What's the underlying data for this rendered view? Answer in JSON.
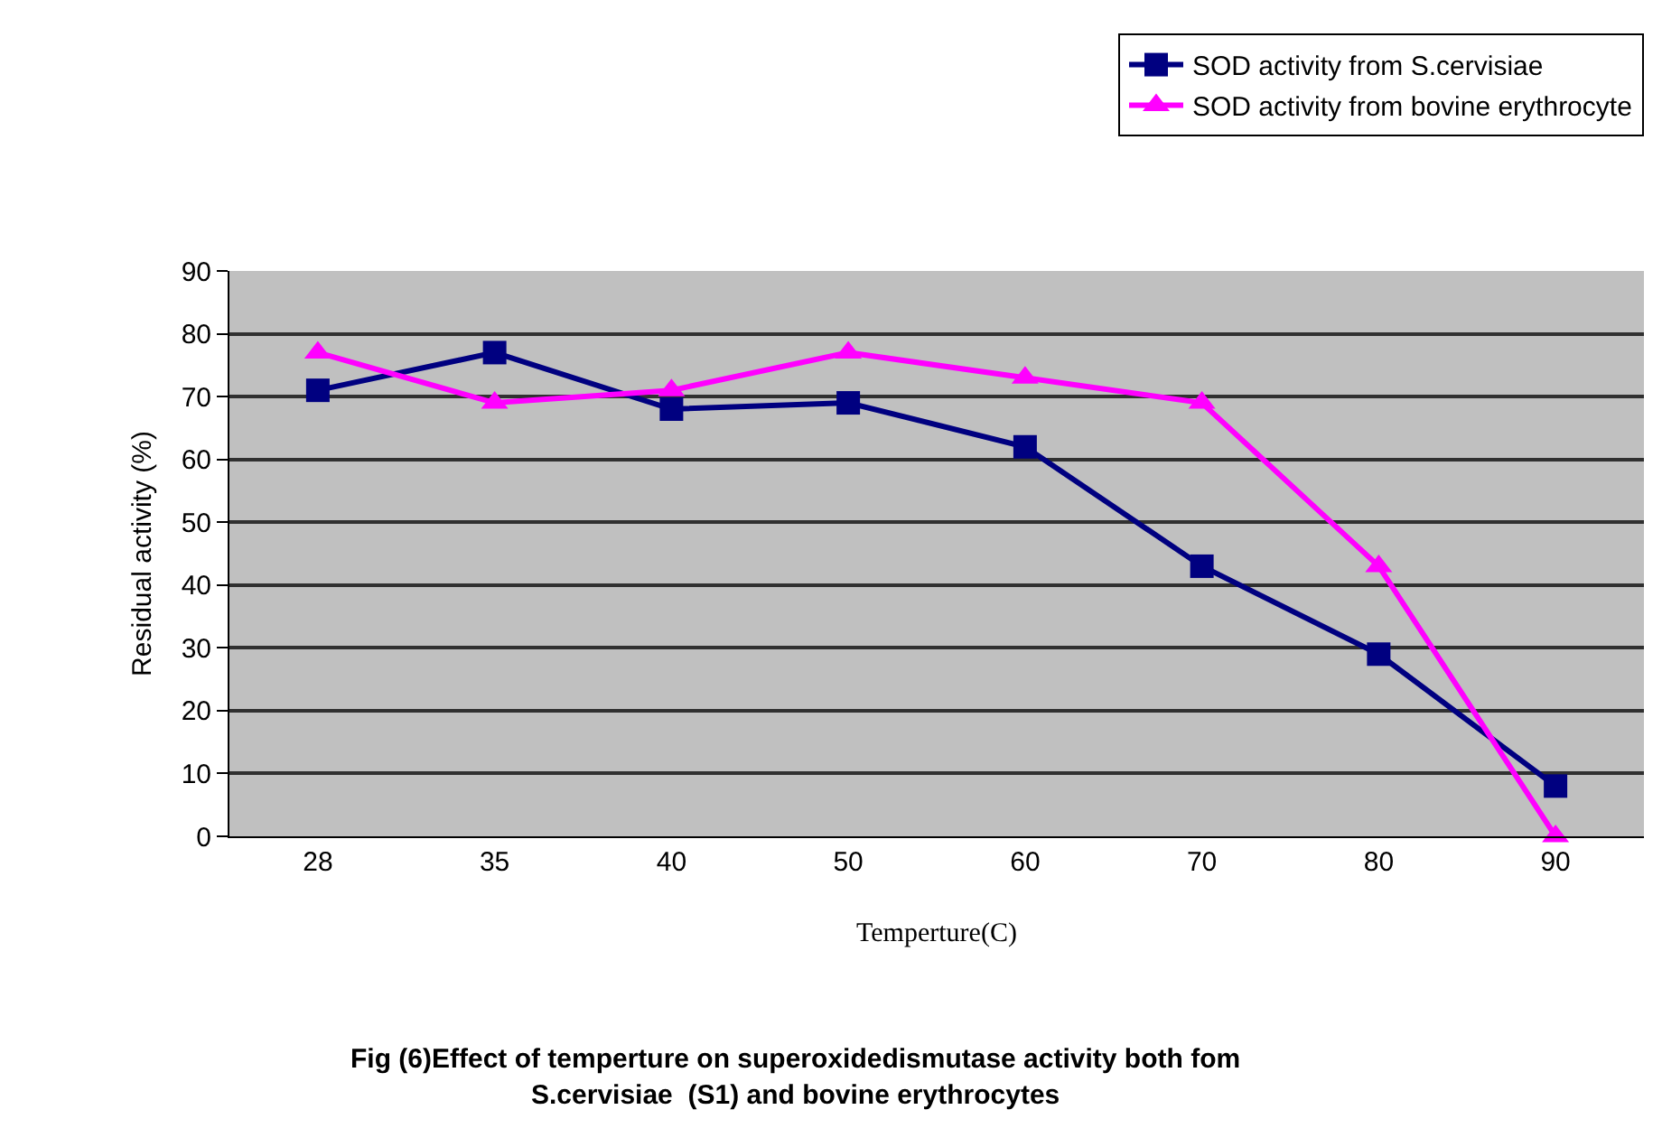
{
  "chart_data": {
    "type": "line",
    "categories": [
      "28",
      "35",
      "40",
      "50",
      "60",
      "70",
      "80",
      "90"
    ],
    "series": [
      {
        "name": "SOD activity from S.cervisiae",
        "color": "#000080",
        "marker": "square",
        "values": [
          71,
          77,
          68,
          69,
          62,
          43,
          29,
          8
        ]
      },
      {
        "name": "SOD activity from bovine erythrocyte",
        "color": "#ff00ff",
        "marker": "triangle",
        "values": [
          77,
          69,
          71,
          77,
          73,
          69,
          43,
          0
        ]
      }
    ],
    "xlabel": "Temperture(C)",
    "ylabel": "Residual activity (%)",
    "ylim": [
      0,
      90
    ],
    "yticks": [
      0,
      10,
      20,
      30,
      40,
      50,
      60,
      70,
      80,
      90
    ],
    "grid": "y",
    "legend": "top right",
    "line_style": "solid",
    "annotations": [
      "Fig (6)Effect of temperture on superoxidedismutase activity both fom",
      "S.cervisiae  (S1) and bovine erythrocytes"
    ]
  }
}
